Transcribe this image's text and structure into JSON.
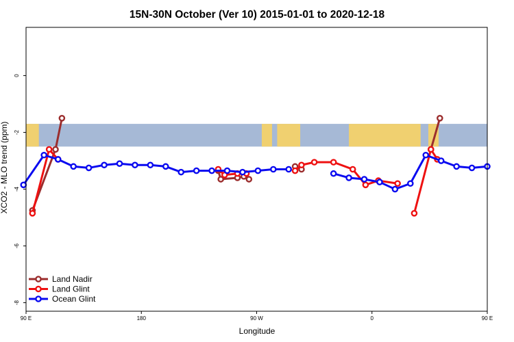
{
  "chart_data": {
    "type": "line",
    "title": "15N-30N October (Ver 10)   2015-01-01 to 2020-12-18",
    "xlabel": "Longitude",
    "ylabel": "XCO2 - MLO trend (ppm)",
    "xlim": [
      90,
      450
    ],
    "ylim": [
      -8.3,
      1.7
    ],
    "x_ticks": [
      {
        "value": 90,
        "label": "90 E"
      },
      {
        "value": 180,
        "label": "180"
      },
      {
        "value": 270,
        "label": "90 W"
      },
      {
        "value": 360,
        "label": "0"
      },
      {
        "value": 450,
        "label": "90 E"
      },
      {
        "value": 540,
        "label": "180"
      }
    ],
    "y_ticks": [
      {
        "value": 0,
        "label": "0"
      },
      {
        "value": -2,
        "label": "-2"
      },
      {
        "value": -4,
        "label": "-4"
      },
      {
        "value": -6,
        "label": "-6"
      },
      {
        "value": -8,
        "label": "-8"
      }
    ],
    "map_band": {
      "y_top": -1.7,
      "y_bottom": -2.5
    },
    "legend_position": "bottom-left",
    "series": [
      {
        "name": "Land Nadir",
        "color": "#9b2d2d",
        "segments": [
          [
            [
              95,
              -4.75
            ],
            [
              113,
              -2.6
            ],
            [
              118,
              -1.5
            ]
          ],
          [
            [
              240,
              -3.35
            ],
            [
              242,
              -3.65
            ],
            [
              255,
              -3.6
            ],
            [
              260,
              -3.55
            ],
            [
              264,
              -3.65
            ]
          ],
          [
            [
              300,
              -3.2
            ],
            [
              305,
              -3.3
            ]
          ],
          [
            [
              406,
              -2.6
            ],
            [
              413,
              -1.5
            ]
          ]
        ]
      },
      {
        "name": "Land Glint",
        "color": "#ee1111",
        "segments": [
          [
            [
              95,
              -4.85
            ],
            [
              108,
              -2.6
            ],
            [
              115,
              -2.95
            ]
          ],
          [
            [
              240,
              -3.3
            ],
            [
              245,
              -3.5
            ],
            [
              255,
              -3.45
            ],
            [
              262,
              -3.45
            ]
          ],
          [
            [
              300,
              -3.35
            ],
            [
              305,
              -3.15
            ],
            [
              315,
              -3.05
            ],
            [
              330,
              -3.05
            ],
            [
              345,
              -3.3
            ],
            [
              355,
              -3.85
            ],
            [
              365,
              -3.7
            ],
            [
              380,
              -3.8
            ]
          ],
          [
            [
              393,
              -4.85
            ],
            [
              406,
              -2.6
            ],
            [
              411,
              -2.95
            ]
          ]
        ]
      },
      {
        "name": "Ocean Glint",
        "color": "#0a0af0",
        "segments": [
          [
            [
              88,
              -3.85
            ],
            [
              104,
              -2.8
            ],
            [
              115,
              -2.95
            ],
            [
              127,
              -3.2
            ],
            [
              139,
              -3.25
            ],
            [
              151,
              -3.15
            ],
            [
              163,
              -3.1
            ],
            [
              175,
              -3.15
            ],
            [
              187,
              -3.15
            ],
            [
              199,
              -3.2
            ],
            [
              211,
              -3.4
            ],
            [
              223,
              -3.35
            ],
            [
              235,
              -3.35
            ],
            [
              247,
              -3.35
            ],
            [
              259,
              -3.4
            ],
            [
              271,
              -3.35
            ],
            [
              283,
              -3.3
            ],
            [
              295,
              -3.3
            ]
          ],
          [
            [
              330,
              -3.45
            ],
            [
              342,
              -3.6
            ],
            [
              354,
              -3.65
            ],
            [
              366,
              -3.75
            ],
            [
              378,
              -4.0
            ],
            [
              390,
              -3.8
            ],
            [
              402,
              -2.8
            ],
            [
              414,
              -3.0
            ],
            [
              426,
              -3.2
            ],
            [
              438,
              -3.25
            ],
            [
              450,
              -3.2
            ]
          ]
        ]
      }
    ]
  }
}
